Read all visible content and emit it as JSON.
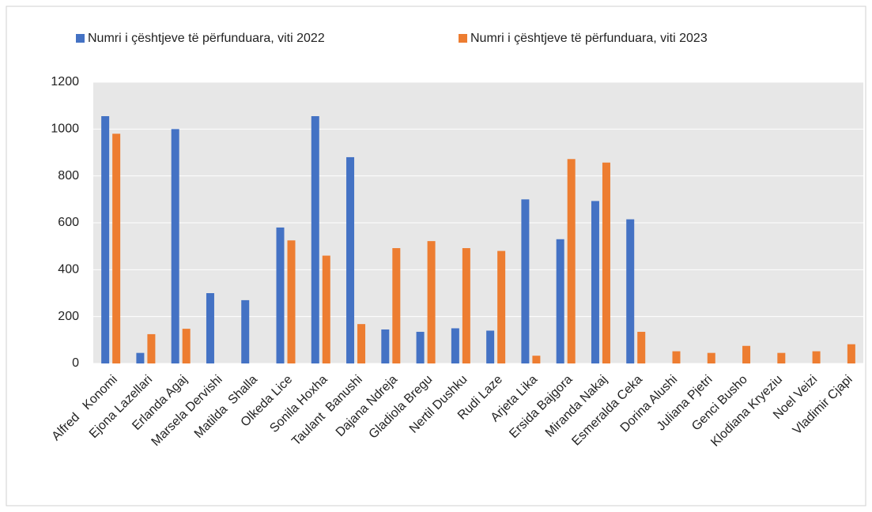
{
  "chart_data": {
    "type": "bar",
    "categories": [
      "Alfred   Konomi",
      "Ejona Lazellari",
      "Erlanda Agaj",
      "Marsela Dervishi",
      "Matilda  Shalla",
      "Olkeda Lice",
      "Sonila Hoxha",
      "Taulant  Banushi",
      "Dajana Ndreja",
      "Gladiola Bregu",
      "Nertil Dushku",
      "Rudi Laze",
      "Arjeta Lika",
      "Ersida Bajgora",
      "Miranda Nakaj",
      "Esmeralda Ceka",
      "Dorina Alushi",
      "Juliana Pjetri",
      "Genci Busho",
      "Klodiana Kryeziu",
      "Noel Veizi",
      "Vladimir Cjapi"
    ],
    "series": [
      {
        "name": "Numri i çështjeve të përfunduara, viti 2022",
        "color": "#4472c4",
        "values": [
          1055,
          45,
          1000,
          300,
          270,
          580,
          1055,
          880,
          145,
          135,
          150,
          140,
          700,
          530,
          693,
          615,
          null,
          null,
          null,
          null,
          null,
          null
        ]
      },
      {
        "name": "Numri i çështjeve të përfunduara, viti 2023",
        "color": "#ed7d31",
        "values": [
          980,
          125,
          148,
          null,
          null,
          525,
          460,
          168,
          492,
          522,
          492,
          480,
          33,
          872,
          857,
          135,
          52,
          45,
          75,
          45,
          52,
          82
        ]
      }
    ],
    "ylim": [
      0,
      1200
    ],
    "yticks": [
      0,
      200,
      400,
      600,
      800,
      1000,
      1200
    ],
    "grid": true,
    "legend": "top"
  }
}
